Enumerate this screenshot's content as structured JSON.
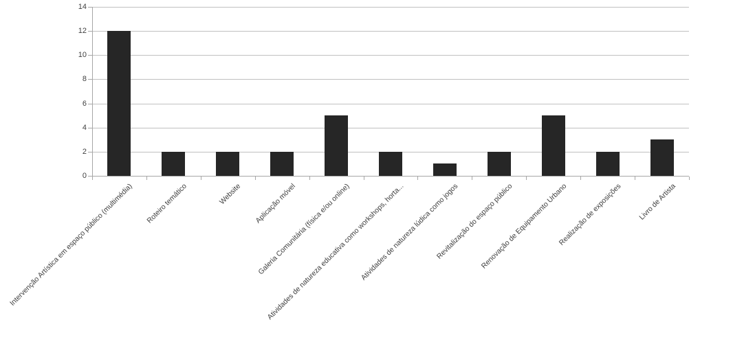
{
  "chart_data": {
    "type": "bar",
    "title": "",
    "xlabel": "",
    "ylabel": "",
    "categories": [
      "Intervenção Artística em espaço público (multimédia)",
      "Roteiro temático",
      "Website",
      "Aplicação móvel",
      "Galeria Comunitária (física e/ou online)",
      "Atividades de natureza educativa como workshops, horta...",
      "Atividades de natureza lúdica como jogos",
      "Revitalização do espaço público",
      "Renovação de Equipamento Urbano",
      "Realização de exposições",
      "Livro de Artista"
    ],
    "values": [
      12,
      2,
      2,
      2,
      5,
      2,
      1,
      2,
      5,
      2,
      3
    ],
    "ylim": [
      0,
      14
    ],
    "yticks": [
      0,
      2,
      4,
      6,
      8,
      10,
      12,
      14
    ],
    "grid": true,
    "legend": false,
    "x_label_rotation_deg": 45,
    "bar_color": "#262626",
    "gridline_color": "#c0c0c0",
    "axis_color": "#a6a6a6",
    "text_color": "#3f3f3f",
    "background_color": "#ffffff"
  }
}
